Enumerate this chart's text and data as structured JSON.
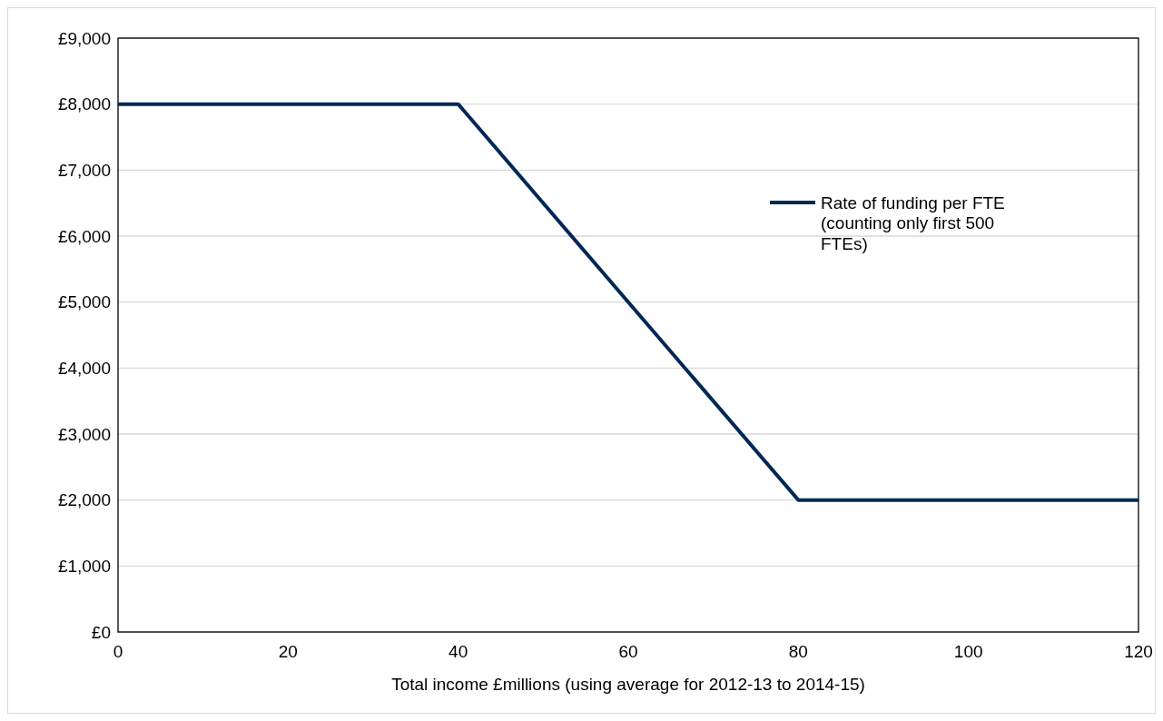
{
  "chart_data": {
    "type": "line",
    "xlabel": "Total income £millions (using average for 2012-13 to 2014-15)",
    "x": [
      0,
      40,
      80,
      120
    ],
    "series": [
      {
        "name": "Rate of funding per FTE (counting only first 500 FTEs)",
        "color": "#002855",
        "values": [
          8000,
          8000,
          2000,
          2000
        ]
      }
    ],
    "xlim": [
      0,
      120
    ],
    "xticks": [
      0,
      20,
      40,
      60,
      80,
      100,
      120
    ],
    "ylim": [
      0,
      9000
    ],
    "yticks": [
      {
        "value": 0,
        "label": "£0"
      },
      {
        "value": 1000,
        "label": "£1,000"
      },
      {
        "value": 2000,
        "label": "£2,000"
      },
      {
        "value": 3000,
        "label": "£3,000"
      },
      {
        "value": 4000,
        "label": "£4,000"
      },
      {
        "value": 5000,
        "label": "£5,000"
      },
      {
        "value": 6000,
        "label": "£6,000"
      },
      {
        "value": 7000,
        "label": "£7,000"
      },
      {
        "value": 8000,
        "label": "£8,000"
      },
      {
        "value": 9000,
        "label": "£9,000"
      }
    ],
    "grid": "y",
    "legend": "right",
    "marker": "none",
    "line_style": "solid"
  }
}
